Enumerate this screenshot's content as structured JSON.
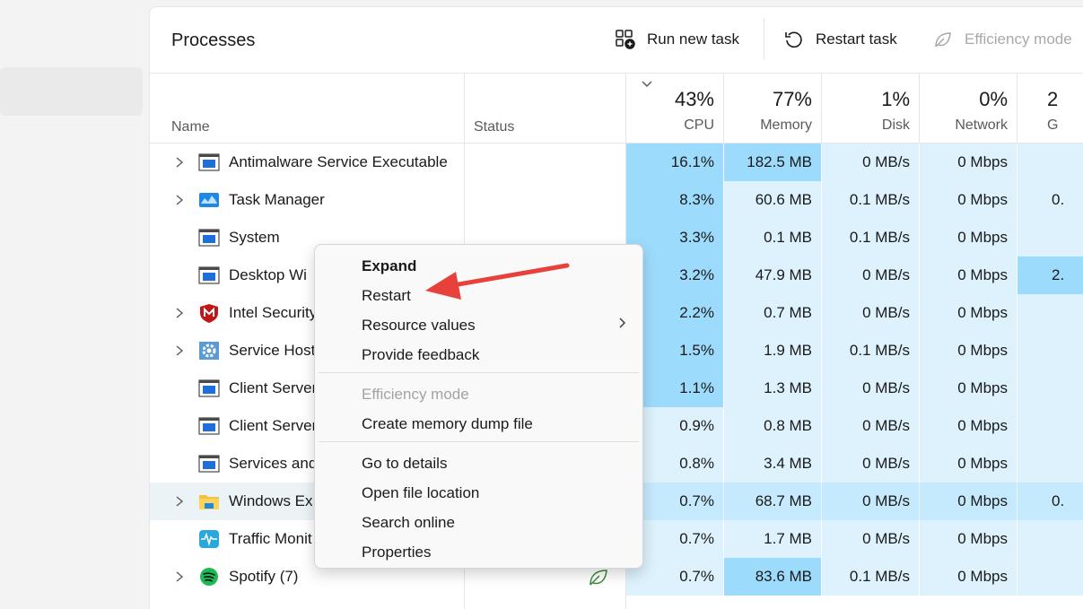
{
  "header": {
    "title": "Processes",
    "run_new_task": "Run new task",
    "restart_task": "Restart task",
    "efficiency_mode": "Efficiency mode"
  },
  "columns": {
    "name": "Name",
    "status": "Status",
    "cpu": {
      "pct": "43%",
      "label": "CPU"
    },
    "memory": {
      "pct": "77%",
      "label": "Memory"
    },
    "disk": {
      "pct": "1%",
      "label": "Disk"
    },
    "network": {
      "pct": "0%",
      "label": "Network"
    },
    "gpu": {
      "pct": "2",
      "label": "G"
    }
  },
  "rows": [
    {
      "name": "Antimalware Service Executable",
      "cpu": "16.1%",
      "mem": "182.5 MB",
      "disk": "0 MB/s",
      "net": "0 Mbps",
      "gpu": ""
    },
    {
      "name": "Task Manager",
      "cpu": "8.3%",
      "mem": "60.6 MB",
      "disk": "0.1 MB/s",
      "net": "0 Mbps",
      "gpu": "0."
    },
    {
      "name": "System",
      "cpu": "3.3%",
      "mem": "0.1 MB",
      "disk": "0.1 MB/s",
      "net": "0 Mbps",
      "gpu": ""
    },
    {
      "name": "Desktop Wi",
      "cpu": "3.2%",
      "mem": "47.9 MB",
      "disk": "0 MB/s",
      "net": "0 Mbps",
      "gpu": "2."
    },
    {
      "name": "Intel Security",
      "cpu": "2.2%",
      "mem": "0.7 MB",
      "disk": "0 MB/s",
      "net": "0 Mbps",
      "gpu": ""
    },
    {
      "name": "Service Host",
      "cpu": "1.5%",
      "mem": "1.9 MB",
      "disk": "0.1 MB/s",
      "net": "0 Mbps",
      "gpu": ""
    },
    {
      "name": "Client Server",
      "cpu": "1.1%",
      "mem": "1.3 MB",
      "disk": "0 MB/s",
      "net": "0 Mbps",
      "gpu": ""
    },
    {
      "name": "Client Server",
      "cpu": "0.9%",
      "mem": "0.8 MB",
      "disk": "0 MB/s",
      "net": "0 Mbps",
      "gpu": ""
    },
    {
      "name": "Services and",
      "cpu": "0.8%",
      "mem": "3.4 MB",
      "disk": "0 MB/s",
      "net": "0 Mbps",
      "gpu": ""
    },
    {
      "name": "Windows Ex",
      "cpu": "0.7%",
      "mem": "68.7 MB",
      "disk": "0 MB/s",
      "net": "0 Mbps",
      "gpu": "0."
    },
    {
      "name": "Traffic Monit",
      "cpu": "0.7%",
      "mem": "1.7 MB",
      "disk": "0 MB/s",
      "net": "0 Mbps",
      "gpu": ""
    },
    {
      "name": "Spotify (7)",
      "cpu": "0.7%",
      "mem": "83.6 MB",
      "disk": "0.1 MB/s",
      "net": "0 Mbps",
      "gpu": ""
    }
  ],
  "context_menu": {
    "expand": "Expand",
    "restart": "Restart",
    "resource_values": "Resource values",
    "provide_feedback": "Provide feedback",
    "efficiency_mode": "Efficiency mode",
    "create_dump": "Create memory dump file",
    "go_to_details": "Go to details",
    "open_file_location": "Open file location",
    "search_online": "Search online",
    "properties": "Properties"
  },
  "colors": {
    "heat_low": "#ddf2fd",
    "heat_mid": "#c6eafd",
    "heat_high": "#9ddbfd",
    "arrow": "#e8403a"
  }
}
